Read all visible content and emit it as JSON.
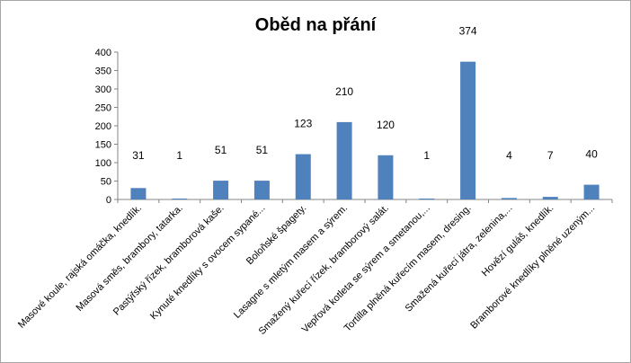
{
  "chart_data": {
    "type": "bar",
    "title": "Oběd na přání",
    "xlabel": "",
    "ylabel": "",
    "ylim": [
      0,
      400
    ],
    "yticks": [
      0,
      50,
      100,
      150,
      200,
      250,
      300,
      350,
      400
    ],
    "grid": false,
    "legend": "none",
    "bar_color": "#4f81bd",
    "categories": [
      "Masové koule, rajská omáčka, knedlík.",
      "Masová směs, brambory, tatarka.",
      "Pastýřský řízek, bramborová kaše.",
      "Kynuté knedlíky s ovocem sypané...",
      "Boloňské špagety.",
      "Lasagne s mletým masem a sýrem.",
      "Smažený kuřecí řízek, bramborový salát.",
      "Vepřová kotleta se sýrem a smetanou,...",
      "Tortilla plněná kuřecím masem, dresing.",
      "Smažená kuřecí játra, zelenina,...",
      "Hovězí guláš, knedlík.",
      "Bramborové knedlíky plněné uzeným..."
    ],
    "values": [
      31,
      1,
      51,
      51,
      123,
      210,
      120,
      1,
      374,
      4,
      7,
      40
    ]
  }
}
